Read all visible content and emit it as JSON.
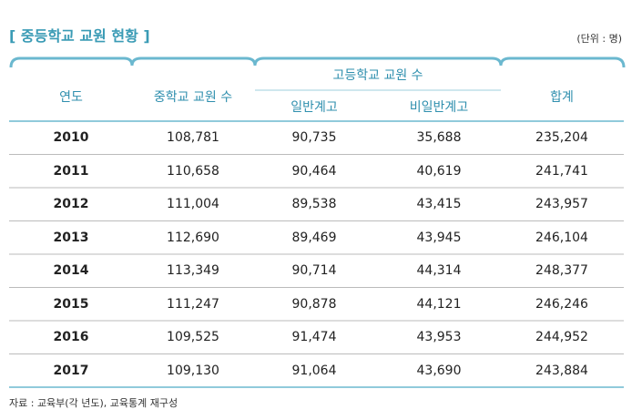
{
  "header": {
    "title": "[ 중등학교 교원 현황 ]",
    "unit": "(단위 : 명)"
  },
  "table": {
    "columns": {
      "year": "연도",
      "middle": "중학교 교원 수",
      "high": "고등학교 교원 수",
      "general": "일반계고",
      "nongeneral": "비일반계고",
      "total": "합계"
    },
    "rows": [
      [
        "2010",
        "108,781",
        "90,735",
        "35,688",
        "235,204"
      ],
      [
        "2011",
        "110,658",
        "90,464",
        "40,619",
        "241,741"
      ],
      [
        "2012",
        "111,004",
        "89,538",
        "43,415",
        "243,957"
      ],
      [
        "2013",
        "112,690",
        "89,469",
        "43,945",
        "246,104"
      ],
      [
        "2014",
        "113,349",
        "90,714",
        "44,314",
        "248,377"
      ],
      [
        "2015",
        "111,247",
        "90,878",
        "44,121",
        "246,246"
      ],
      [
        "2016",
        "109,525",
        "91,474",
        "43,953",
        "244,952"
      ],
      [
        "2017",
        "109,130",
        "91,064",
        "43,690",
        "243,884"
      ]
    ]
  },
  "footer": {
    "source": "자료 : 교육부(각 년도), 교육통계 재구성"
  }
}
